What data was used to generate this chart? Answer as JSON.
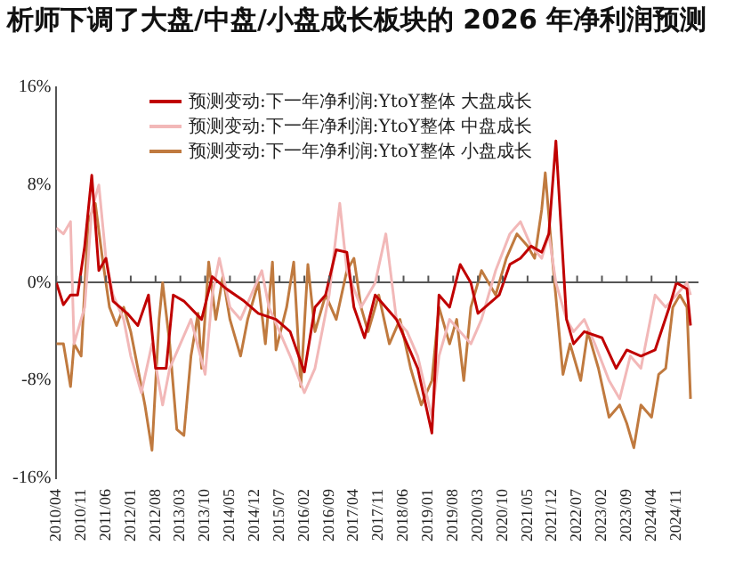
{
  "chart_data": {
    "type": "line",
    "title": "析师下调了大盘/中盘/小盘成长板块的 2026 年净利润预测",
    "xlim": [
      "2010-04",
      "2025-05"
    ],
    "xticks": [
      {
        "value": "2010-04",
        "label": "2010/04"
      },
      {
        "value": "2010-11",
        "label": "2010/11"
      },
      {
        "value": "2011-06",
        "label": "2011/06"
      },
      {
        "value": "2012-01",
        "label": "2012/01"
      },
      {
        "value": "2012-08",
        "label": "2012/08"
      },
      {
        "value": "2013-03",
        "label": "2013/03"
      },
      {
        "value": "2013-10",
        "label": "2013/10"
      },
      {
        "value": "2014-05",
        "label": "2014/05"
      },
      {
        "value": "2014-12",
        "label": "2014/12"
      },
      {
        "value": "2015-07",
        "label": "2015/07"
      },
      {
        "value": "2016-02",
        "label": "2016/02"
      },
      {
        "value": "2016-09",
        "label": "2016/09"
      },
      {
        "value": "2017-04",
        "label": "2017/04"
      },
      {
        "value": "2017-11",
        "label": "2017/11"
      },
      {
        "value": "2018-06",
        "label": "2018/06"
      },
      {
        "value": "2019-01",
        "label": "2019/01"
      },
      {
        "value": "2019-08",
        "label": "2019/08"
      },
      {
        "value": "2020-03",
        "label": "2020/03"
      },
      {
        "value": "2020-10",
        "label": "2020/10"
      },
      {
        "value": "2021-05",
        "label": "2021/05"
      },
      {
        "value": "2021-12",
        "label": "2021/12"
      },
      {
        "value": "2022-07",
        "label": "2022/07"
      },
      {
        "value": "2023-02",
        "label": "2023/02"
      },
      {
        "value": "2023-09",
        "label": "2023/09"
      },
      {
        "value": "2024-04",
        "label": "2024/04"
      },
      {
        "value": "2024-11",
        "label": "2024/11"
      }
    ],
    "ylim": [
      -16,
      16
    ],
    "yticks": [
      {
        "value": -16,
        "label": "-16%"
      },
      {
        "value": -8,
        "label": "-8%"
      },
      {
        "value": 0,
        "label": "0%"
      },
      {
        "value": 8,
        "label": "8%"
      },
      {
        "value": 16,
        "label": "16%"
      }
    ],
    "legend": "top",
    "marker": "none",
    "series": [
      {
        "name": "预测变动:下一年净利润:YtoY整体 大盘成长",
        "color": "#c00000",
        "x": [
          "2010-04",
          "2010-06",
          "2010-08",
          "2010-10",
          "2010-12",
          "2011-02",
          "2011-04",
          "2011-06",
          "2011-08",
          "2011-12",
          "2012-03",
          "2012-06",
          "2012-08",
          "2012-11",
          "2013-01",
          "2013-04",
          "2013-09",
          "2013-12",
          "2014-04",
          "2014-09",
          "2015-01",
          "2015-06",
          "2015-10",
          "2016-02",
          "2016-05",
          "2016-08",
          "2016-11",
          "2017-02",
          "2017-04",
          "2017-07",
          "2017-10",
          "2018-01",
          "2018-04",
          "2018-07",
          "2018-10",
          "2019-02",
          "2019-04",
          "2019-07",
          "2019-10",
          "2020-01",
          "2020-03",
          "2020-09",
          "2020-12",
          "2021-03",
          "2021-06",
          "2021-09",
          "2021-11",
          "2022-01",
          "2022-04",
          "2022-06",
          "2022-09",
          "2023-02",
          "2023-06",
          "2023-09",
          "2024-01",
          "2024-05",
          "2024-09",
          "2024-11",
          "2025-02",
          "2025-03"
        ],
        "values": [
          0,
          -1.8,
          -1,
          -1,
          3,
          8.8,
          1,
          2,
          -1.5,
          -2.5,
          -3.5,
          -1,
          -7,
          -7,
          -1,
          -1.5,
          -3,
          0.5,
          -0.5,
          -1.5,
          -2.5,
          -3,
          -4,
          -7.3,
          -2,
          -1,
          2.7,
          2.5,
          -2,
          -4.5,
          -1,
          -2,
          -3,
          -5,
          -7,
          -12.3,
          -1,
          -2,
          1.5,
          0,
          -2.5,
          -1,
          1.5,
          2,
          3,
          2.5,
          4,
          11.6,
          -3,
          -5,
          -4,
          -4.5,
          -7,
          -5.5,
          -6,
          -5.5,
          -2,
          0,
          -0.5,
          -3.5
        ]
      },
      {
        "name": "预测变动:下一年净利润:YtoY整体 中盘成长",
        "color": "#f2b8b8",
        "x": [
          "2010-04",
          "2010-06",
          "2010-08",
          "2010-09",
          "2010-12",
          "2011-02",
          "2011-04",
          "2011-06",
          "2011-08",
          "2011-11",
          "2012-01",
          "2012-04",
          "2012-07",
          "2012-10",
          "2012-12",
          "2013-03",
          "2013-06",
          "2013-10",
          "2013-12",
          "2014-02",
          "2014-05",
          "2014-08",
          "2014-11",
          "2015-02",
          "2015-04",
          "2015-07",
          "2015-10",
          "2016-02",
          "2016-05",
          "2016-09",
          "2016-12",
          "2017-02",
          "2017-06",
          "2017-10",
          "2018-01",
          "2018-04",
          "2018-07",
          "2018-10",
          "2019-02",
          "2019-04",
          "2019-07",
          "2019-10",
          "2020-01",
          "2020-04",
          "2020-08",
          "2020-12",
          "2021-03",
          "2021-06",
          "2021-09",
          "2021-11",
          "2022-01",
          "2022-04",
          "2022-06",
          "2022-09",
          "2022-12",
          "2023-04",
          "2023-07",
          "2023-10",
          "2024-01",
          "2024-05",
          "2024-08",
          "2024-11",
          "2025-02",
          "2025-03"
        ],
        "values": [
          4.5,
          4,
          5,
          -5,
          -2,
          6,
          8,
          2,
          -1,
          -3,
          -6,
          -9,
          -5,
          -10,
          -7,
          -5,
          -3,
          -7.5,
          -1,
          2,
          -2,
          -3,
          -1,
          1,
          -2,
          -4,
          -6,
          -9,
          -7,
          -1,
          6.5,
          1,
          -2,
          0,
          4,
          -3,
          -4,
          -6,
          -11,
          -6,
          -3,
          -4,
          -5,
          -3,
          1,
          4,
          5,
          3,
          2,
          4,
          0,
          -3,
          -4,
          -3,
          -5,
          -8,
          -9.5,
          -6,
          -7,
          -1,
          -2,
          -1,
          0,
          -1
        ]
      },
      {
        "name": "预测变动:下一年净利润:YtoY整体 小盘成长",
        "color": "#c07a3f",
        "x": [
          "2010-04",
          "2010-06",
          "2010-08",
          "2010-09",
          "2010-11",
          "2011-01",
          "2011-03",
          "2011-05",
          "2011-07",
          "2011-09",
          "2011-11",
          "2012-01",
          "2012-03",
          "2012-05",
          "2012-07",
          "2012-09",
          "2012-10",
          "2012-12",
          "2013-02",
          "2013-04",
          "2013-06",
          "2013-08",
          "2013-09",
          "2013-11",
          "2014-01",
          "2014-03",
          "2014-05",
          "2014-08",
          "2014-10",
          "2015-01",
          "2015-03",
          "2015-05",
          "2015-06",
          "2015-09",
          "2015-11",
          "2016-01",
          "2016-03",
          "2016-05",
          "2016-08",
          "2016-11",
          "2017-02",
          "2017-04",
          "2017-06",
          "2017-08",
          "2017-11",
          "2018-02",
          "2018-05",
          "2018-08",
          "2018-11",
          "2019-02",
          "2019-04",
          "2019-07",
          "2019-09",
          "2019-11",
          "2020-01",
          "2020-04",
          "2020-08",
          "2020-11",
          "2021-02",
          "2021-05",
          "2021-07",
          "2021-09",
          "2021-10",
          "2021-12",
          "2022-03",
          "2022-05",
          "2022-08",
          "2022-10",
          "2023-01",
          "2023-04",
          "2023-07",
          "2023-09",
          "2023-11",
          "2024-01",
          "2024-04",
          "2024-06",
          "2024-08",
          "2024-10",
          "2024-12",
          "2025-02",
          "2025-03"
        ],
        "values": [
          -5,
          -5,
          -8.5,
          -5,
          -6,
          5,
          6.5,
          2,
          -2,
          -3.5,
          -2,
          -4,
          -7,
          -10,
          -13.7,
          -3,
          0,
          -5,
          -12,
          -12.5,
          -6,
          -2.5,
          -7,
          1.7,
          -3,
          0.5,
          -3,
          -6,
          -3,
          0,
          -5,
          1.7,
          -5.5,
          -2,
          1.7,
          -8.5,
          1.5,
          -4,
          -1,
          -3,
          1,
          2,
          -2,
          -4,
          -1,
          -5,
          -3,
          -7,
          -10,
          -8,
          -2,
          -5,
          -3,
          -8,
          -2,
          1,
          -1,
          2,
          4,
          3,
          2,
          6,
          9,
          2,
          -7.5,
          -5,
          -8,
          -4,
          -7,
          -11,
          -10,
          -11.5,
          -13.5,
          -10,
          -11,
          -7.5,
          -7,
          -2,
          -1,
          -2,
          -9.5
        ]
      }
    ]
  }
}
